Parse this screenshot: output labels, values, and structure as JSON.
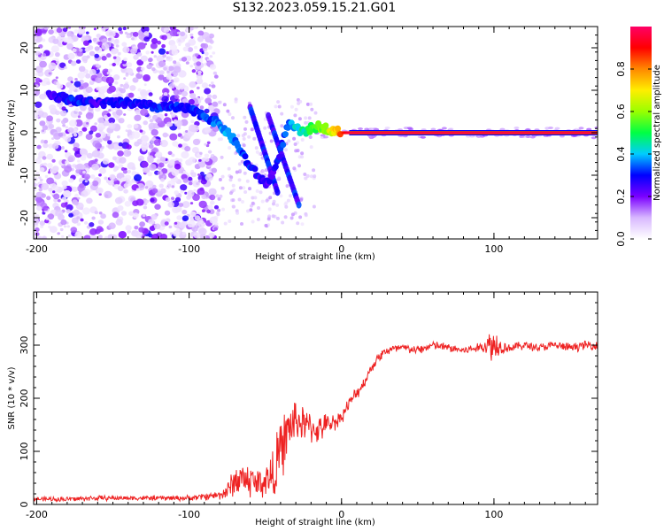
{
  "title": "S132.2023.059.15.21.G01",
  "chart_data": [
    {
      "type": "heatmap",
      "xlabel": "Height of straight line (km)",
      "ylabel": "Frequency (Hz)",
      "xlim": [
        -202,
        168
      ],
      "ylim": [
        -25,
        25
      ],
      "xticks": [
        "-200",
        "-100",
        "0",
        "100"
      ],
      "yticks": [
        "-20",
        "-10",
        "0",
        "10",
        "20"
      ],
      "colorbar": {
        "label": "Normalized spectral amplitude",
        "range": [
          0.0,
          1.0
        ],
        "ticks": [
          "0.0",
          "0.2",
          "0.4",
          "0.6",
          "0.8"
        ],
        "colors": [
          "#ffffff",
          "#d8b8ff",
          "#7a00ff",
          "#0000ff",
          "#00ccff",
          "#00ff44",
          "#99ff00",
          "#ffee00",
          "#ff8800",
          "#ff0000",
          "#ff0066"
        ]
      },
      "ridge": {
        "x": [
          -192,
          -180,
          -170,
          -160,
          -150,
          -140,
          -130,
          -120,
          -110,
          -100,
          -90,
          -80,
          -75,
          -70,
          -65,
          -60,
          -55,
          -50,
          -45,
          -40,
          -35,
          -30,
          -25,
          -20,
          -15,
          -10,
          -5,
          0,
          5,
          20,
          40,
          60,
          80,
          100,
          120,
          140,
          168
        ],
        "y": [
          9,
          8,
          7.5,
          7,
          7,
          7,
          6.5,
          6,
          6,
          5.5,
          4,
          2,
          0,
          -2,
          -5,
          -8,
          -10,
          -12,
          -10,
          -4,
          2,
          1,
          0,
          1,
          1.5,
          1,
          0.5,
          0,
          0,
          0,
          0,
          0,
          0,
          0,
          0,
          0,
          0
        ],
        "amplitude": [
          0.25,
          0.3,
          0.3,
          0.25,
          0.3,
          0.3,
          0.28,
          0.3,
          0.3,
          0.3,
          0.32,
          0.35,
          0.4,
          0.35,
          0.33,
          0.3,
          0.28,
          0.25,
          0.25,
          0.3,
          0.35,
          0.4,
          0.45,
          0.5,
          0.55,
          0.6,
          0.7,
          0.85,
          0.95,
          0.97,
          0.97,
          0.97,
          0.97,
          0.97,
          0.97,
          0.97,
          0.97
        ]
      }
    },
    {
      "type": "line",
      "xlabel": "Height of straight line (km)",
      "ylabel": "SNR (10 * v/v)",
      "xlim": [
        -202,
        168
      ],
      "ylim": [
        0,
        400
      ],
      "xticks": [
        "-200",
        "-100",
        "0",
        "100"
      ],
      "yticks": [
        "0",
        "100",
        "200",
        "300"
      ],
      "color": "#ee2222",
      "series": [
        {
          "x": [
            -202,
            -180,
            -160,
            -140,
            -120,
            -100,
            -90,
            -80,
            -75,
            -70,
            -65,
            -60,
            -55,
            -50,
            -45,
            -40,
            -35,
            -30,
            -25,
            -20,
            -15,
            -10,
            -5,
            0,
            5,
            10,
            15,
            20,
            25,
            30,
            40,
            50,
            60,
            70,
            80,
            90,
            95,
            100,
            103,
            110,
            120,
            130,
            140,
            150,
            160,
            168
          ],
          "values": [
            10,
            10,
            12,
            12,
            12,
            12,
            15,
            18,
            25,
            45,
            50,
            45,
            40,
            45,
            55,
            100,
            140,
            160,
            150,
            145,
            140,
            150,
            155,
            165,
            190,
            210,
            230,
            260,
            280,
            290,
            295,
            290,
            300,
            295,
            290,
            295,
            300,
            300,
            300,
            295,
            300,
            295,
            300,
            295,
            300,
            300
          ],
          "amplitude": [
            5,
            6,
            6,
            5,
            6,
            6,
            8,
            10,
            20,
            35,
            40,
            40,
            35,
            40,
            60,
            70,
            60,
            50,
            40,
            35,
            30,
            25,
            20,
            15,
            15,
            15,
            12,
            12,
            12,
            12,
            10,
            10,
            10,
            10,
            10,
            10,
            20,
            60,
            20,
            10,
            10,
            10,
            10,
            10,
            10,
            10
          ]
        }
      ]
    }
  ]
}
